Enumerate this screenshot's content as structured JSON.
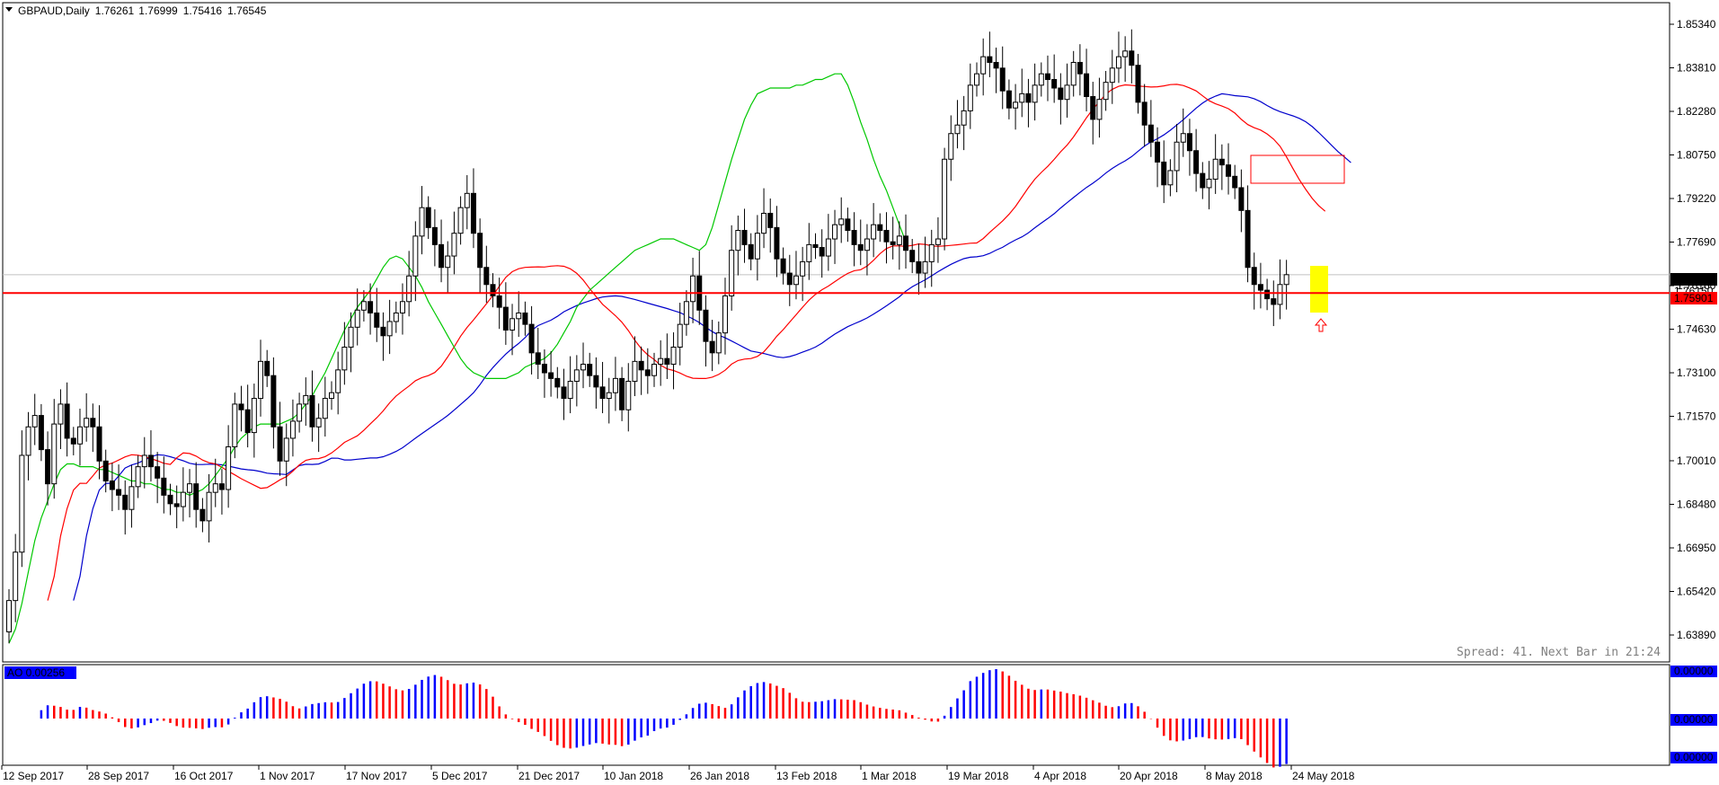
{
  "header": {
    "menu_icon": "triangle-down-icon",
    "title": "GBPAUD,Daily",
    "open": "1.76261",
    "high": "1.76999",
    "low": "1.75416",
    "close": "1.76545"
  },
  "spread_info": "Spread: 41. Next Bar in 21:24",
  "price_tags": {
    "current": "1.76545",
    "secondary": "1.76150",
    "level": "1.75901"
  },
  "indicator": {
    "label": "AO 0.00256",
    "tags": [
      "0.00000",
      "0.00000",
      "0.00000"
    ]
  },
  "colors": {
    "background": "#ffffff",
    "ma_fast": "#00c800",
    "ma_mid": "#ff0000",
    "ma_slow": "#0000cc",
    "hist_up": "#0000ff",
    "hist_down": "#ff0000",
    "level_line": "#ff0000",
    "highlight": "#ffff00"
  },
  "chart_data": {
    "type": "candlestick",
    "symbol": "GBPAUD",
    "timeframe": "Daily",
    "y_axis_ticks": [
      "1.85340",
      "1.83810",
      "1.82280",
      "1.80750",
      "1.79220",
      "1.77690",
      "1.76160",
      "1.74630",
      "1.73100",
      "1.71570",
      "1.70010",
      "1.68480",
      "1.66950",
      "1.65420",
      "1.63890"
    ],
    "ylim": [
      1.633,
      1.858
    ],
    "x_axis_ticks": [
      "12 Sep 2017",
      "28 Sep 2017",
      "16 Oct 2017",
      "1 Nov 2017",
      "17 Nov 2017",
      "5 Dec 2017",
      "21 Dec 2017",
      "10 Jan 2018",
      "26 Jan 2018",
      "13 Feb 2018",
      "1 Mar 2018",
      "19 Mar 2018",
      "4 Apr 2018",
      "20 Apr 2018",
      "8 May 2018",
      "24 May 2018"
    ],
    "horizontal_level": 1.75901,
    "close_series": [
      1.651,
      1.668,
      1.702,
      1.712,
      1.716,
      1.704,
      1.692,
      1.713,
      1.72,
      1.708,
      1.706,
      1.712,
      1.715,
      1.712,
      1.7,
      1.693,
      1.69,
      1.688,
      1.683,
      1.691,
      1.698,
      1.702,
      1.698,
      1.694,
      1.688,
      1.685,
      1.684,
      1.689,
      1.692,
      1.683,
      1.679,
      1.689,
      1.692,
      1.69,
      1.705,
      1.72,
      1.718,
      1.71,
      1.722,
      1.735,
      1.73,
      1.712,
      1.7,
      1.708,
      1.714,
      1.72,
      1.723,
      1.712,
      1.715,
      1.722,
      1.724,
      1.732,
      1.74,
      1.747,
      1.753,
      1.756,
      1.752,
      1.747,
      1.744,
      1.749,
      1.752,
      1.756,
      1.765,
      1.779,
      1.789,
      1.782,
      1.776,
      1.768,
      1.772,
      1.78,
      1.789,
      1.794,
      1.78,
      1.768,
      1.762,
      1.758,
      1.754,
      1.746,
      1.75,
      1.752,
      1.748,
      1.738,
      1.734,
      1.731,
      1.729,
      1.726,
      1.722,
      1.728,
      1.732,
      1.734,
      1.73,
      1.726,
      1.722,
      1.724,
      1.729,
      1.718,
      1.728,
      1.735,
      1.732,
      1.73,
      1.734,
      1.736,
      1.734,
      1.74,
      1.748,
      1.756,
      1.765,
      1.753,
      1.742,
      1.738,
      1.745,
      1.758,
      1.774,
      1.781,
      1.776,
      1.771,
      1.78,
      1.787,
      1.782,
      1.771,
      1.766,
      1.762,
      1.765,
      1.77,
      1.776,
      1.775,
      1.772,
      1.778,
      1.783,
      1.785,
      1.781,
      1.776,
      1.774,
      1.778,
      1.783,
      1.781,
      1.777,
      1.776,
      1.779,
      1.774,
      1.77,
      1.766,
      1.77,
      1.776,
      1.778,
      1.806,
      1.815,
      1.818,
      1.823,
      1.832,
      1.836,
      1.842,
      1.84,
      1.838,
      1.83,
      1.824,
      1.826,
      1.829,
      1.826,
      1.832,
      1.836,
      1.834,
      1.831,
      1.827,
      1.832,
      1.84,
      1.836,
      1.828,
      1.82,
      1.827,
      1.833,
      1.838,
      1.842,
      1.844,
      1.839,
      1.826,
      1.818,
      1.812,
      1.805,
      1.797,
      1.802,
      1.812,
      1.815,
      1.809,
      1.801,
      1.796,
      1.799,
      1.806,
      1.804,
      1.8,
      1.796,
      1.788,
      1.768,
      1.762,
      1.76,
      1.757,
      1.755,
      1.762,
      1.76545
    ],
    "ma_fast": [
      1.636,
      1.641,
      1.65,
      1.661,
      1.672,
      1.68,
      1.686,
      1.692,
      1.697,
      1.699,
      1.699,
      1.698,
      1.698,
      1.698,
      1.697,
      1.697,
      1.696,
      1.695,
      1.694,
      1.693,
      1.693,
      1.692,
      1.692,
      1.691,
      1.69,
      1.69,
      1.689,
      1.689,
      1.688,
      1.689,
      1.69,
      1.692,
      1.695,
      1.698,
      1.701,
      1.705,
      1.708,
      1.71,
      1.712,
      1.713,
      1.713,
      1.713,
      1.713,
      1.714,
      1.715,
      1.717,
      1.72,
      1.723,
      1.727,
      1.731,
      1.736,
      1.741,
      1.746,
      1.75,
      1.754,
      1.757,
      1.76,
      1.764,
      1.768,
      1.771,
      1.772,
      1.771,
      1.768,
      1.765,
      1.761,
      1.756,
      1.752,
      1.748,
      1.744,
      1.74,
      1.736,
      1.733,
      1.731,
      1.73,
      1.729,
      1.729,
      1.729,
      1.729,
      1.73,
      1.731,
      1.733,
      1.734,
      1.735,
      1.736,
      1.738,
      1.741,
      1.745,
      1.749,
      1.754,
      1.757,
      1.76,
      1.762,
      1.764,
      1.766,
      1.768,
      1.77,
      1.772,
      1.774,
      1.775,
      1.776,
      1.777,
      1.778,
      1.778,
      1.778,
      1.777,
      1.776,
      1.775,
      1.774,
      1.776,
      1.782,
      1.79,
      1.798,
      1.806,
      1.813,
      1.82,
      1.825,
      1.829,
      1.83,
      1.831,
      1.831,
      1.831,
      1.831,
      1.832,
      1.832,
      1.833,
      1.834,
      1.834,
      1.835,
      1.836,
      1.836,
      1.832,
      1.826,
      1.819,
      1.813,
      1.806,
      1.8,
      1.795,
      1.789,
      1.783,
      1.777
    ]
  }
}
